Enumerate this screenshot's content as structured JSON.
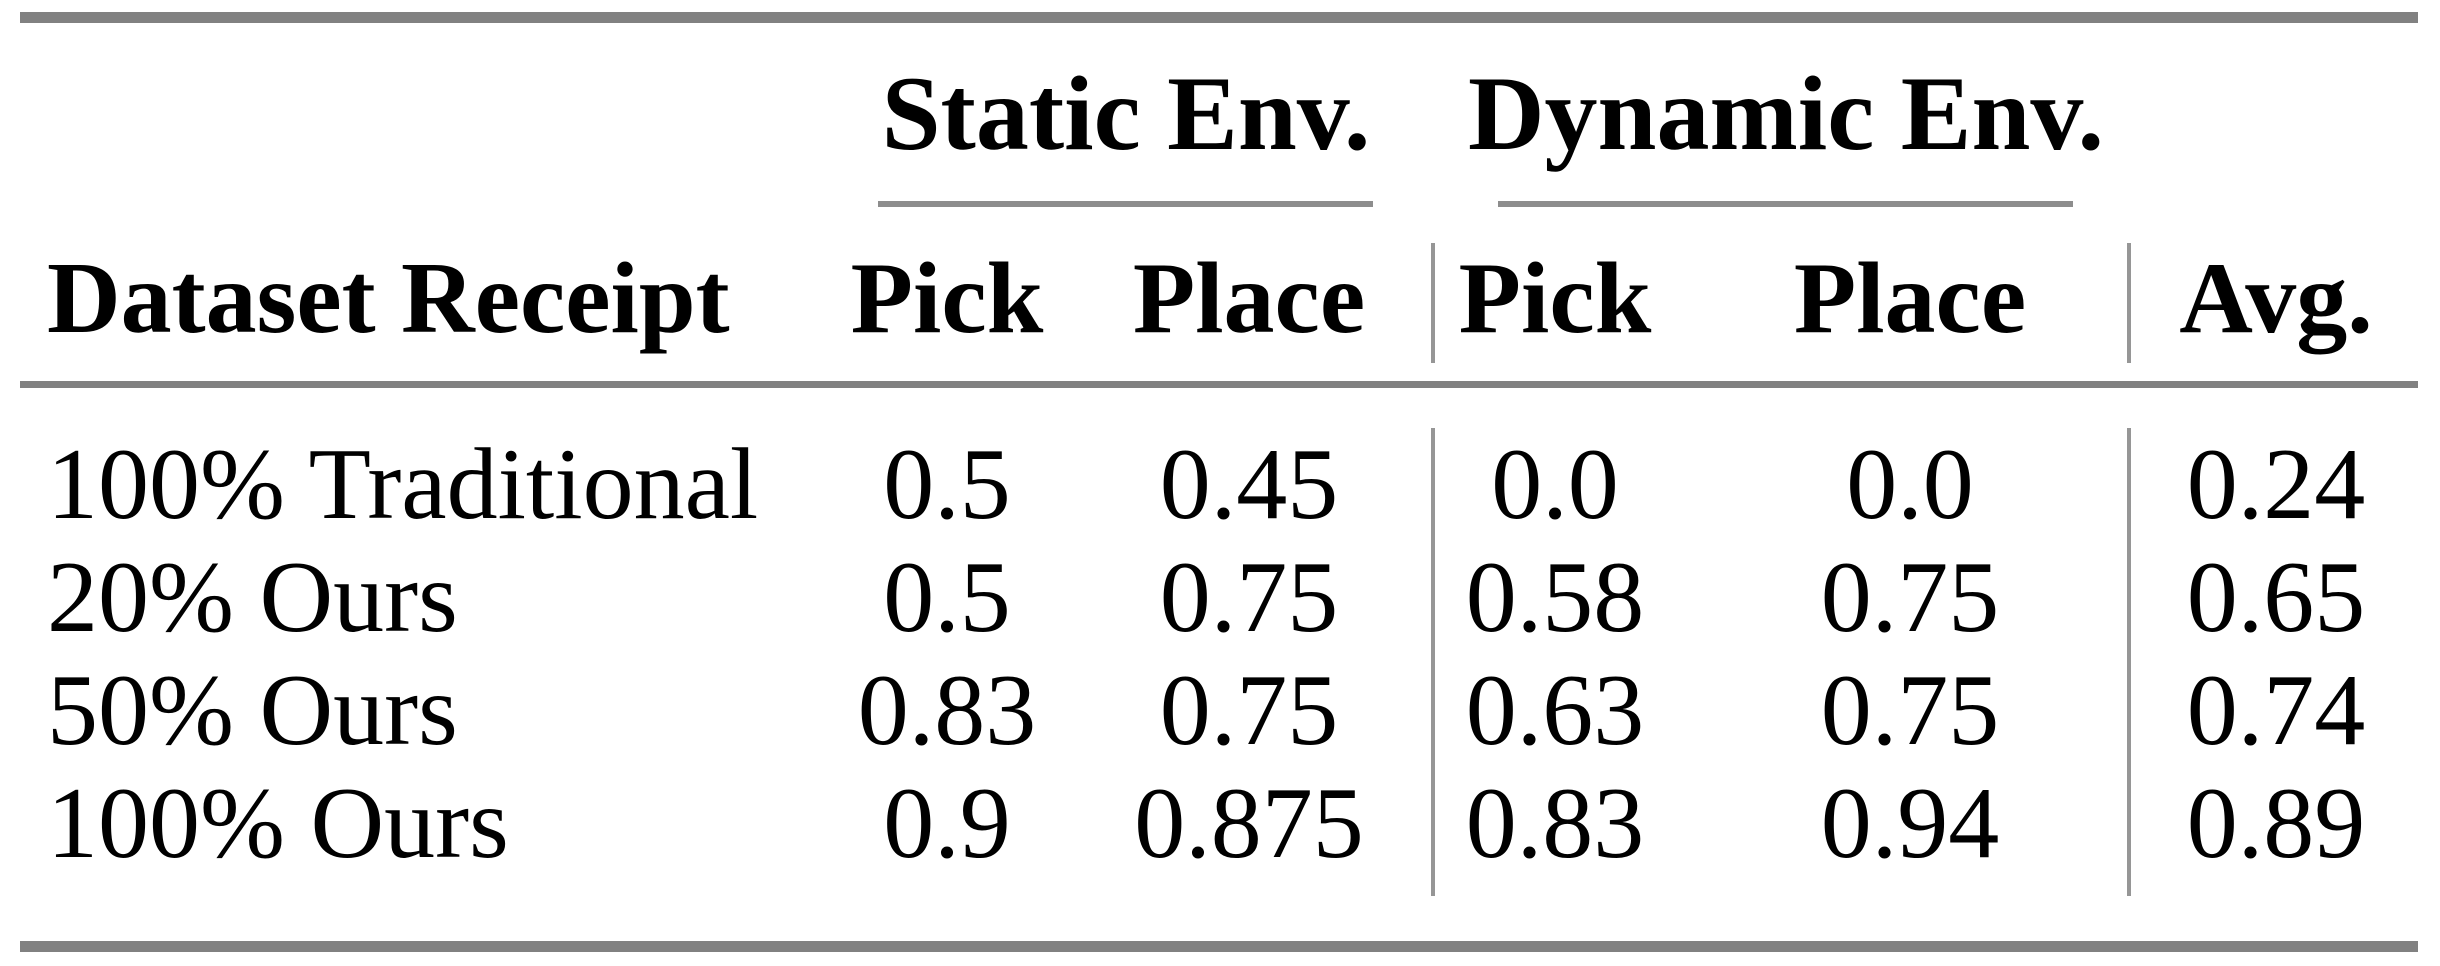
{
  "table": {
    "group_headers": [
      {
        "label": "Static Env."
      },
      {
        "label": "Dynamic Env."
      }
    ],
    "headers": {
      "row_label": "Dataset Receipt",
      "columns": [
        "Pick",
        "Place",
        "Pick",
        "Place",
        "Avg."
      ]
    },
    "rows": [
      {
        "label": "100% Traditional",
        "values": [
          "0.5",
          "0.45",
          "0.0",
          "0.0",
          "0.24"
        ]
      },
      {
        "label": "20% Ours",
        "values": [
          "0.5",
          "0.75",
          "0.58",
          "0.75",
          "0.65"
        ]
      },
      {
        "label": "50% Ours",
        "values": [
          "0.83",
          "0.75",
          "0.63",
          "0.75",
          "0.74"
        ]
      },
      {
        "label": "100% Ours",
        "values": [
          "0.9",
          "0.875",
          "0.83",
          "0.94",
          "0.89"
        ]
      }
    ],
    "colors": {
      "rule_heavy": "#818181",
      "rule_light": "#8d8d8d",
      "separator": "#969696",
      "text": "#000000",
      "background": "#ffffff"
    }
  },
  "chart_data": {
    "type": "table",
    "title": "",
    "column_groups": [
      "Static Env.",
      "Dynamic Env."
    ],
    "columns": [
      "Dataset Receipt",
      "Static Env. Pick",
      "Static Env. Place",
      "Dynamic Env. Pick",
      "Dynamic Env. Place",
      "Avg."
    ],
    "rows": [
      [
        "100% Traditional",
        0.5,
        0.45,
        0.0,
        0.0,
        0.24
      ],
      [
        "20% Ours",
        0.5,
        0.75,
        0.58,
        0.75,
        0.65
      ],
      [
        "50% Ours",
        0.83,
        0.75,
        0.63,
        0.75,
        0.74
      ],
      [
        "100% Ours",
        0.9,
        0.875,
        0.83,
        0.94,
        0.89
      ]
    ]
  }
}
